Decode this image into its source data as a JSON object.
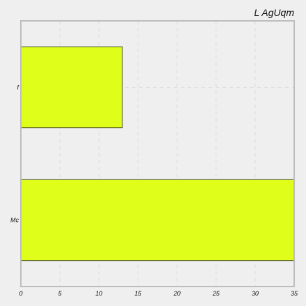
{
  "chart_data": {
    "type": "bar",
    "orientation": "horizontal",
    "title": "L AgUqm",
    "xlabel": "",
    "ylabel": "",
    "categories": [
      "f",
      "Mc"
    ],
    "values": [
      13,
      35
    ],
    "xlim": [
      0,
      35
    ],
    "xticks": [
      0,
      5,
      10,
      15,
      20,
      25,
      30,
      35
    ],
    "grid": true,
    "legend": "none",
    "colors": {
      "bar": "#dfff1a",
      "background": "#efefef",
      "grid": "#d8d8d8",
      "frame": "#bdbdbd"
    }
  }
}
